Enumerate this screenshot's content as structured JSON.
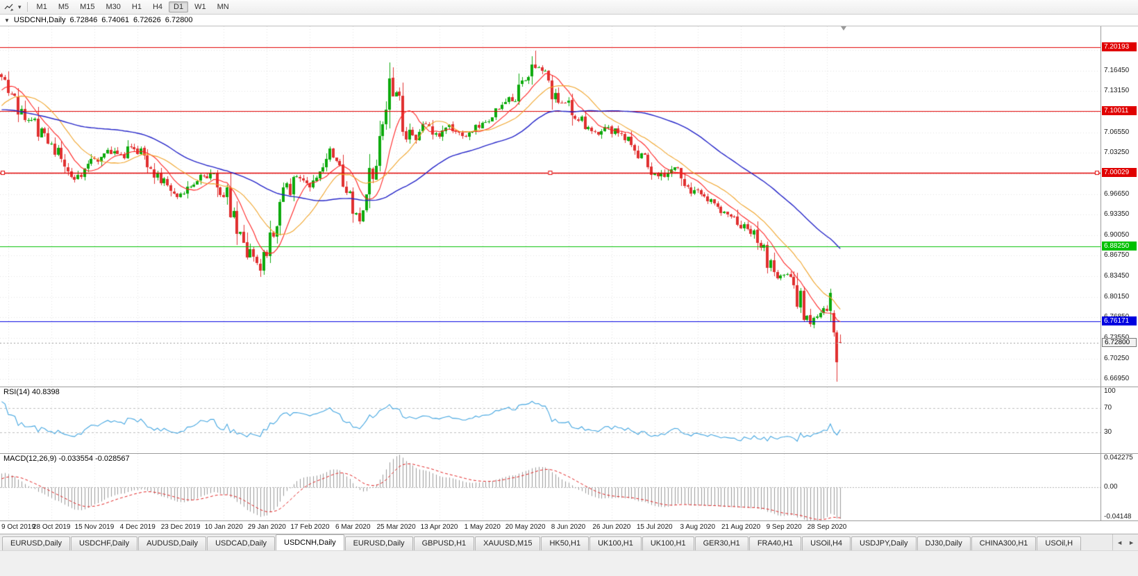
{
  "toolbar": {
    "timeframes": [
      {
        "label": "M1",
        "active": false
      },
      {
        "label": "M5",
        "active": false
      },
      {
        "label": "M15",
        "active": false
      },
      {
        "label": "M30",
        "active": false
      },
      {
        "label": "H1",
        "active": false
      },
      {
        "label": "H4",
        "active": false
      },
      {
        "label": "D1",
        "active": true
      },
      {
        "label": "W1",
        "active": false
      },
      {
        "label": "MN",
        "active": false
      }
    ]
  },
  "chart": {
    "header": {
      "collapse_glyph": "▼",
      "symbol_period": "USDCNH,Daily",
      "open": "6.72846",
      "high": "6.74061",
      "low": "6.72626",
      "close": "6.72800"
    }
  },
  "chart_data": {
    "type": "candlestick",
    "symbol": "USDCNH",
    "timeframe": "Daily",
    "current_ohlc": {
      "open": 6.72846,
      "high": 6.74061,
      "low": 6.72626,
      "close": 6.728
    },
    "price_range": {
      "top": 7.2355,
      "bottom": 6.6575
    },
    "total_slots": 332,
    "candle_count": 254,
    "candle_colors": {
      "up": "#0caa0c",
      "down": "#e03030"
    },
    "price_ticks": [
      "6.66950",
      "6.70250",
      "6.73550",
      "6.76850",
      "6.80150",
      "6.83450",
      "6.86750",
      "6.90050",
      "6.93350",
      "6.96650",
      "6.99950",
      "7.03250",
      "7.06550",
      "7.09850",
      "7.13150",
      "7.16450",
      "7.19750"
    ],
    "horizontal_lines": [
      {
        "price": 7.20193,
        "label": "7.20193",
        "color": "#e00000",
        "selected": false
      },
      {
        "price": 7.10011,
        "label": "7.10011",
        "color": "#e00000",
        "selected": false
      },
      {
        "price": 7.00029,
        "label": "7.00029",
        "color": "#e00000",
        "selected": true
      },
      {
        "price": 6.8825,
        "label": "6.88250",
        "color": "#00c000",
        "selected": false
      },
      {
        "price": 6.76171,
        "label": "6.76171",
        "color": "#0000e0",
        "selected": false
      }
    ],
    "current_price": {
      "value": 6.728,
      "label": "6.72800"
    },
    "ma_lines": [
      {
        "period": 9,
        "color": "#ff2222",
        "width": 1.1
      },
      {
        "period": 18,
        "color": "#f0a328",
        "width": 1.1
      },
      {
        "period": 52,
        "color": "#2424c8",
        "width": 1.4
      }
    ],
    "date_labels": [
      {
        "label": "9 Oct 2019",
        "slot": 2
      },
      {
        "label": "28 Oct 2019",
        "slot": 15
      },
      {
        "label": "15 Nov 2019",
        "slot": 28
      },
      {
        "label": "4 Dec 2019",
        "slot": 41
      },
      {
        "label": "23 Dec 2019",
        "slot": 54
      },
      {
        "label": "10 Jan 2020",
        "slot": 67
      },
      {
        "label": "29 Jan 2020",
        "slot": 80
      },
      {
        "label": "17 Feb 2020",
        "slot": 93
      },
      {
        "label": "6 Mar 2020",
        "slot": 106
      },
      {
        "label": "25 Mar 2020",
        "slot": 119
      },
      {
        "label": "13 Apr 2020",
        "slot": 132
      },
      {
        "label": "1 May 2020",
        "slot": 145
      },
      {
        "label": "20 May 2020",
        "slot": 158
      },
      {
        "label": "8 Jun 2020",
        "slot": 171
      },
      {
        "label": "26 Jun 2020",
        "slot": 184
      },
      {
        "label": "15 Jul 2020",
        "slot": 197
      },
      {
        "label": "3 Aug 2020",
        "slot": 210
      },
      {
        "label": "21 Aug 2020",
        "slot": 223
      },
      {
        "label": "9 Sep 2020",
        "slot": 236
      },
      {
        "label": "28 Sep 2020",
        "slot": 249
      }
    ],
    "anchors": [
      [
        0,
        7.152
      ],
      [
        2,
        7.14
      ],
      [
        5,
        7.108
      ],
      [
        8,
        7.09
      ],
      [
        12,
        7.065
      ],
      [
        15,
        7.052
      ],
      [
        18,
        7.02
      ],
      [
        21,
        6.988
      ],
      [
        24,
        6.998
      ],
      [
        28,
        7.02
      ],
      [
        32,
        7.036
      ],
      [
        36,
        7.028
      ],
      [
        39,
        7.046
      ],
      [
        43,
        7.028
      ],
      [
        46,
        7.004
      ],
      [
        50,
        6.976
      ],
      [
        54,
        6.962
      ],
      [
        57,
        6.984
      ],
      [
        61,
        6.998
      ],
      [
        64,
        6.992
      ],
      [
        67,
        6.97
      ],
      [
        70,
        6.93
      ],
      [
        73,
        6.882
      ],
      [
        76,
        6.862
      ],
      [
        78,
        6.85
      ],
      [
        80,
        6.876
      ],
      [
        83,
        6.928
      ],
      [
        86,
        6.972
      ],
      [
        89,
        6.992
      ],
      [
        93,
        6.982
      ],
      [
        96,
        7.01
      ],
      [
        99,
        7.038
      ],
      [
        101,
        7.024
      ],
      [
        104,
        6.974
      ],
      [
        106,
        6.936
      ],
      [
        108,
        6.93
      ],
      [
        110,
        6.958
      ],
      [
        112,
        6.998
      ],
      [
        114,
        7.058
      ],
      [
        117,
        7.148
      ],
      [
        119,
        7.116
      ],
      [
        122,
        7.072
      ],
      [
        125,
        7.055
      ],
      [
        128,
        7.082
      ],
      [
        131,
        7.06
      ],
      [
        134,
        7.076
      ],
      [
        137,
        7.064
      ],
      [
        140,
        7.058
      ],
      [
        143,
        7.068
      ],
      [
        146,
        7.082
      ],
      [
        149,
        7.096
      ],
      [
        152,
        7.108
      ],
      [
        155,
        7.128
      ],
      [
        158,
        7.148
      ],
      [
        161,
        7.172
      ],
      [
        164,
        7.15
      ],
      [
        167,
        7.124
      ],
      [
        170,
        7.112
      ],
      [
        173,
        7.094
      ],
      [
        176,
        7.076
      ],
      [
        179,
        7.064
      ],
      [
        182,
        7.076
      ],
      [
        185,
        7.066
      ],
      [
        188,
        7.058
      ],
      [
        191,
        7.038
      ],
      [
        194,
        7.018
      ],
      [
        197,
        7.0
      ],
      [
        200,
        6.996
      ],
      [
        203,
        7.006
      ],
      [
        206,
        6.988
      ],
      [
        209,
        6.97
      ],
      [
        212,
        6.96
      ],
      [
        215,
        6.95
      ],
      [
        218,
        6.94
      ],
      [
        221,
        6.926
      ],
      [
        224,
        6.914
      ],
      [
        227,
        6.902
      ],
      [
        229,
        6.893
      ],
      [
        231,
        6.858
      ],
      [
        233,
        6.834
      ],
      [
        236,
        6.84
      ],
      [
        238,
        6.846
      ],
      [
        240,
        6.806
      ],
      [
        242,
        6.776
      ],
      [
        244,
        6.758
      ],
      [
        246,
        6.776
      ],
      [
        248,
        6.786
      ],
      [
        250,
        6.776
      ],
      [
        251,
        6.744
      ],
      [
        252,
        6.695
      ],
      [
        253,
        6.728
      ]
    ],
    "forced_candles": [
      {
        "i": 251,
        "o": 6.776,
        "h": 6.78,
        "l": 6.738,
        "c": 6.744
      },
      {
        "i": 252,
        "o": 6.744,
        "h": 6.748,
        "l": 6.6655,
        "c": 6.696
      },
      {
        "i": 253,
        "o": 6.72846,
        "h": 6.74061,
        "l": 6.72626,
        "c": 6.728
      }
    ],
    "forced_wicks": [
      {
        "i": 161,
        "h": 7.1963
      },
      {
        "i": 117,
        "h": 7.1655
      },
      {
        "i": 78,
        "l": 6.8425
      }
    ],
    "shift_slot": 254,
    "indicators": [
      {
        "name": "RSI",
        "params": "14",
        "value": "40.8398",
        "label": "RSI(14) 40.8398",
        "color": "#42a5e0",
        "levels": [
          {
            "label": "100",
            "value": 100
          },
          {
            "label": "70",
            "value": 70
          },
          {
            "label": "30",
            "value": 30
          }
        ],
        "range": [
          0,
          100
        ]
      },
      {
        "name": "MACD",
        "params": "12,26,9",
        "values": "-0.033554 -0.028567",
        "label": "MACD(12,26,9) -0.033554 -0.028567",
        "histogram_color": "#9a9a9a",
        "signal_color": "#e02020",
        "axis_labels": [
          {
            "label": "0.042275",
            "value": 0.042275
          },
          {
            "label": "0.00",
            "value": 0
          },
          {
            "label": "-0.04148",
            "value": -0.04148
          }
        ],
        "range": {
          "top": 0.042275,
          "bottom": -0.04148
        }
      }
    ]
  },
  "tabs": {
    "items": [
      {
        "label": "EURUSD,Daily",
        "active": false
      },
      {
        "label": "USDCHF,Daily",
        "active": false
      },
      {
        "label": "AUDUSD,Daily",
        "active": false
      },
      {
        "label": "USDCAD,Daily",
        "active": false
      },
      {
        "label": "USDCNH,Daily",
        "active": true
      },
      {
        "label": "EURUSD,Daily",
        "active": false
      },
      {
        "label": "GBPUSD,H1",
        "active": false
      },
      {
        "label": "XAUUSD,M15",
        "active": false
      },
      {
        "label": "HK50,H1",
        "active": false
      },
      {
        "label": "UK100,H1",
        "active": false
      },
      {
        "label": "UK100,H1",
        "active": false
      },
      {
        "label": "GER30,H1",
        "active": false
      },
      {
        "label": "FRA40,H1",
        "active": false
      },
      {
        "label": "USOil,H4",
        "active": false
      },
      {
        "label": "USDJPY,Daily",
        "active": false
      },
      {
        "label": "DJ30,Daily",
        "active": false
      },
      {
        "label": "CHINA300,H1",
        "active": false
      },
      {
        "label": "USOil,H",
        "active": false
      }
    ],
    "scroll_left": "◄",
    "scroll_right": "►"
  }
}
